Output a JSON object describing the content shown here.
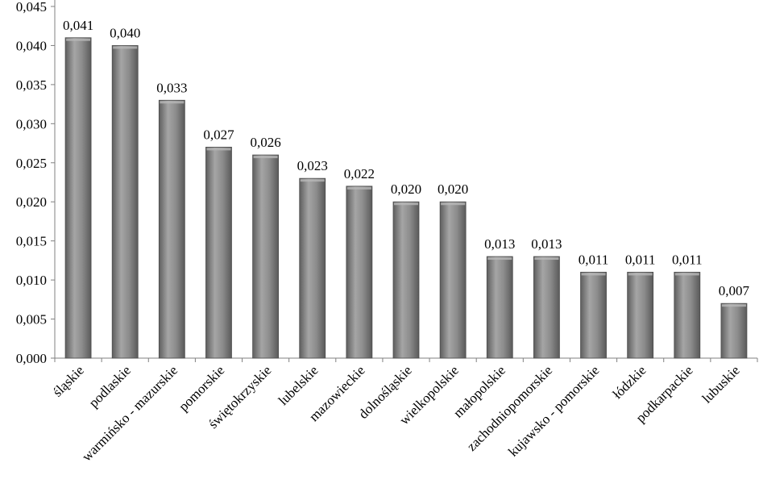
{
  "chart_data": {
    "type": "bar",
    "title": "",
    "xlabel": "",
    "ylabel": "",
    "ylim": [
      0,
      0.045
    ],
    "y_ticks": [
      "0,000",
      "0,005",
      "0,010",
      "0,015",
      "0,020",
      "0,025",
      "0,030",
      "0,035",
      "0,040",
      "0,045"
    ],
    "y_tick_values": [
      0,
      0.005,
      0.01,
      0.015,
      0.02,
      0.025,
      0.03,
      0.035,
      0.04,
      0.045
    ],
    "grid": false,
    "legend": "none",
    "categories": [
      "śląskie",
      "podlaskie",
      "warmińsko - mazurskie",
      "pomorskie",
      "świętokrzyskie",
      "lubelskie",
      "mazowieckie",
      "dolnośląskie",
      "wielkopolskie",
      "małopolskie",
      "zachodniopomorskie",
      "kujawsko - pomorskie",
      "łódzkie",
      "podkarpackie",
      "lubuskie"
    ],
    "values": [
      0.041,
      0.04,
      0.033,
      0.027,
      0.026,
      0.023,
      0.022,
      0.02,
      0.02,
      0.013,
      0.013,
      0.011,
      0.011,
      0.011,
      0.007
    ],
    "data_labels": [
      "0,041",
      "0,040",
      "0,033",
      "0,027",
      "0,026",
      "0,023",
      "0,022",
      "0,020",
      "0,020",
      "0,013",
      "0,013",
      "0,011",
      "0,011",
      "0,011",
      "0,007"
    ],
    "colors": {
      "bar": "#8c8c8c",
      "bar_highlight": "#b8b8b8",
      "bar_shadow": "#5e5e5e",
      "axis": "#808080"
    }
  }
}
